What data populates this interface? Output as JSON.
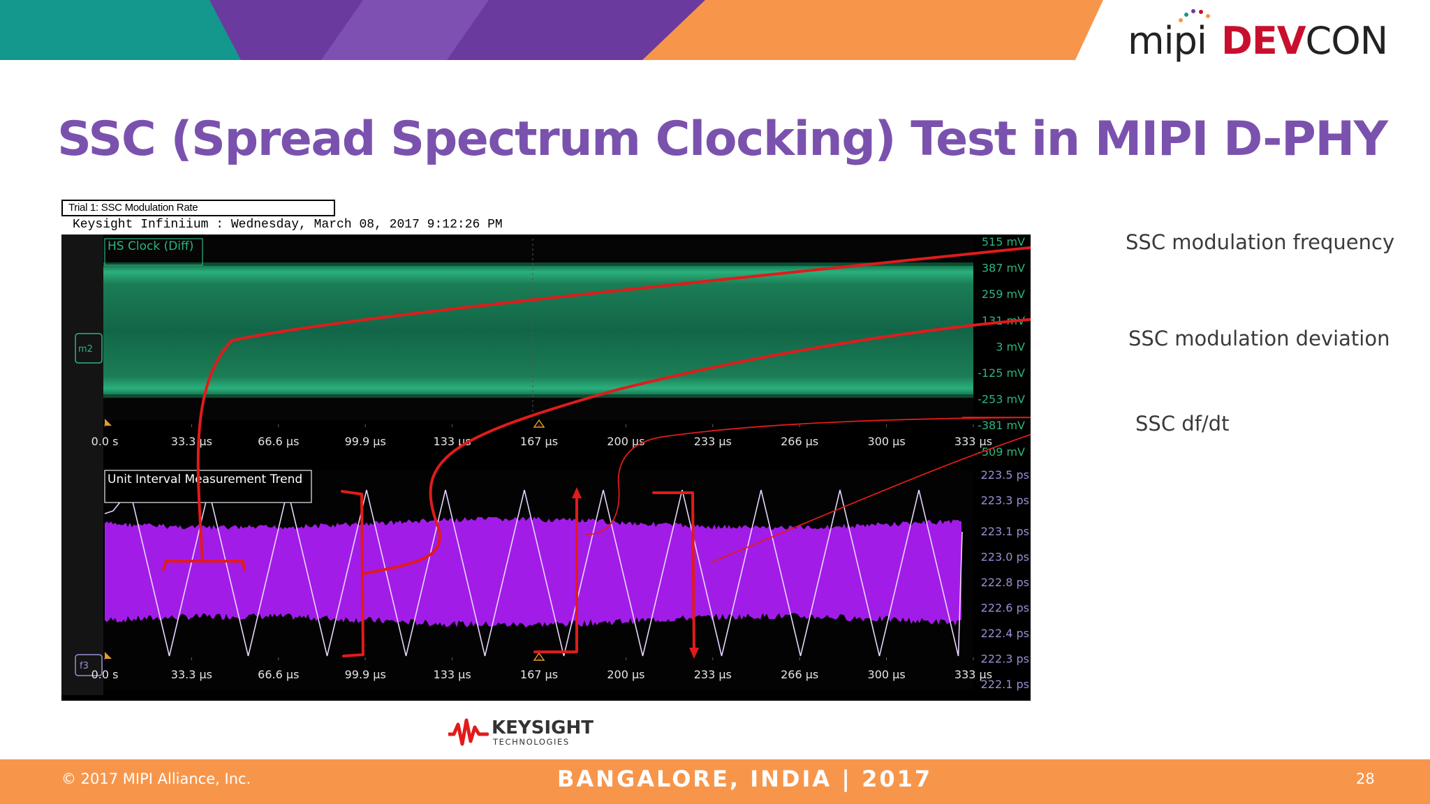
{
  "slide": {
    "title": "SSC (Spread Spectrum Clocking) Test in MIPI D-PHY",
    "logo": {
      "mipi": "mipi",
      "devcon_dev": "DEV",
      "devcon_con": "CON"
    },
    "trial_label": "Trial 1: SSC Modulation Rate",
    "scope_header": "Keysight Infiniium : Wednesday, March 08, 2017 9:12:26 PM",
    "callouts": [
      "SSC modulation frequency",
      "SSC modulation deviation",
      "SSC df/dt"
    ],
    "keysight": {
      "name": "KEYSIGHT",
      "sub": "TECHNOLOGIES"
    },
    "footer": {
      "copyright": "© 2017 MIPI Alliance, Inc.",
      "event": "BANGALORE, INDIA | 2017",
      "page": "28"
    }
  },
  "scope": {
    "top_panel_label": "HS Clock (Diff)",
    "bottom_panel_label": "Unit Interval Measurement Trend",
    "top_marker": "m2",
    "bottom_marker": "f3",
    "time_ticks": [
      "0.0 s",
      "33.3 µs",
      "66.6 µs",
      "99.9 µs",
      "133 µs",
      "167 µs",
      "200 µs",
      "233 µs",
      "266 µs",
      "300 µs",
      "333 µs"
    ],
    "top_y_ticks": [
      "515 mV",
      "387 mV",
      "259 mV",
      "131 mV",
      "3 mV",
      "-125 mV",
      "-253 mV",
      "-381 mV",
      "-509 mV"
    ],
    "bottom_y_ticks": [
      "223.5 ps",
      "223.3 ps",
      "223.1 ps",
      "223.0 ps",
      "222.8 ps",
      "222.6 ps",
      "222.4 ps",
      "222.3 ps",
      "222.1 ps"
    ],
    "colors": {
      "top_trace": "#1c8a5c",
      "top_axis": "#2db57e",
      "bottom_trace": "#a21ce8",
      "bottom_axis": "#9a8fd6",
      "annotation": "#e11b1b",
      "banner_teal": "#14978d",
      "banner_purple": "#6a3a9e",
      "banner_orange": "#f7964b"
    }
  }
}
